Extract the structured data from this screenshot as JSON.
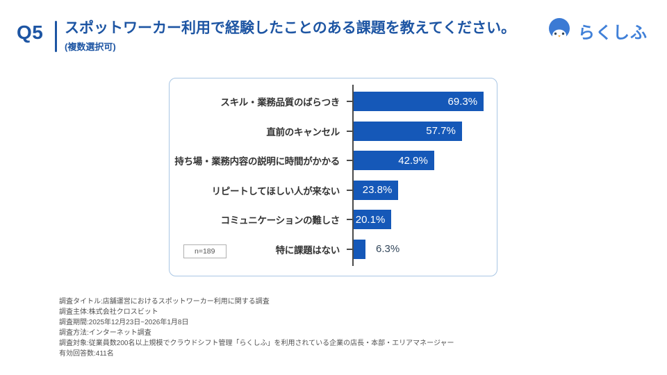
{
  "header": {
    "question_number": "Q5",
    "title": "スポットワーカー利用で経験したことのある課題を教えてください。",
    "subtitle": "(複数選択可)",
    "brand": "らくしふ"
  },
  "colors": {
    "primary_blue": "#1d55a3",
    "bar_blue": "#1558b8",
    "logo_blue": "#4080d8",
    "beak_orange": "#f0a32e",
    "card_border": "#a9c6e4"
  },
  "chart_data": {
    "type": "bar",
    "orientation": "horizontal",
    "title": "スポットワーカー利用で経験したことのある課題",
    "categories": [
      "スキル・業務品質のばらつき",
      "直前のキャンセル",
      "持ち場・業務内容の説明に時間がかかる",
      "リピートしてほしい人が来ない",
      "コミュニケーションの難しさ",
      "特に課題はない"
    ],
    "values": [
      69.3,
      57.7,
      42.9,
      23.8,
      20.1,
      6.3
    ],
    "unit": "%",
    "xlim": [
      0,
      75
    ],
    "grid": false,
    "sample_label": "n=189"
  },
  "footer": {
    "lines": [
      "調査タイトル:店舗運営におけるスポットワーカー利用に関する調査",
      "調査主体:株式会社クロスビット",
      "調査期間:2025年12月23日~2026年1月8日",
      "調査方法:インターネット調査",
      "調査対象:従業員数200名以上規模でクラウドシフト管理「らくしふ」を利用されている企業の店長・本部・エリアマネージャー",
      "有効回答数:411名"
    ]
  }
}
